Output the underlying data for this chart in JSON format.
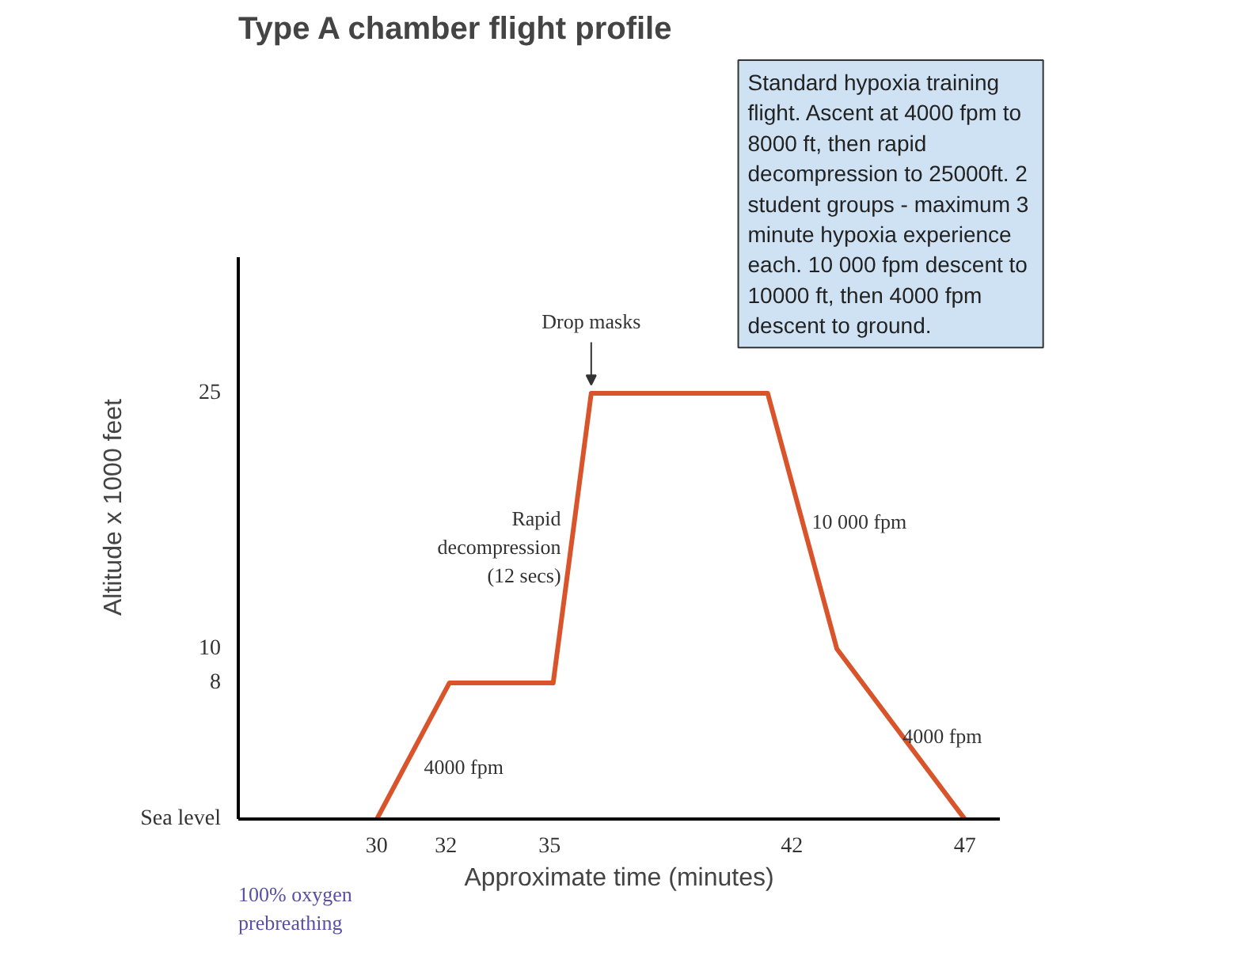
{
  "chart_data": {
    "type": "line",
    "title": "Type A chamber flight profile",
    "xlabel": "Approximate time (minutes)",
    "ylabel": "Altitude x 1000 feet",
    "x": [
      30,
      32.1,
      35.1,
      36.2,
      41.3,
      43.3,
      47
    ],
    "series": [
      {
        "color": "#d9532b",
        "values": [
          0,
          8,
          8,
          25,
          25,
          10,
          0
        ]
      }
    ],
    "xlim": [
      26,
      48
    ],
    "xticks": [
      30,
      32,
      35,
      42,
      47
    ],
    "ylim": [
      0,
      33
    ],
    "yticks": [
      {
        "value": 0,
        "label": "Sea level"
      },
      8,
      10,
      25
    ],
    "grid": false,
    "marker": "none",
    "line_style": "solid",
    "annotations": [
      {
        "text": "Drop masks",
        "x": 36.2,
        "y": 25
      },
      {
        "text": "Rapid decompression (12 secs)",
        "x": 35.6,
        "y": 16
      },
      {
        "text": "4000 fpm",
        "x": 31,
        "y": 4
      },
      {
        "text": "10 000 fpm",
        "x": 42.3,
        "y": 17.5
      },
      {
        "text": "4000 fpm",
        "x": 45.2,
        "y": 4.9
      },
      "Standard hypoxia training flight.  Ascent at 4000 fpm to 8000 ft, then rapid decompression to 25000ft.  2 student groups - maximum 3 minute hypoxia experience each.  10 000 fpm descent to 10000 ft, then 4000 fpm descent to ground.",
      "100% oxygen prebreathing"
    ]
  }
}
